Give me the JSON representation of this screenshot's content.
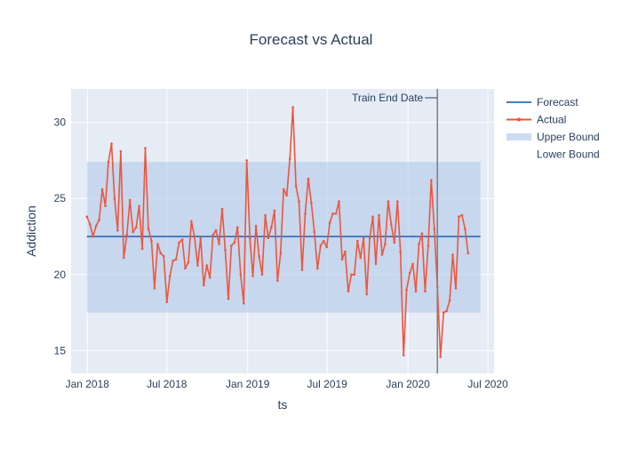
{
  "chart_data": {
    "type": "line",
    "title": "Forecast vs Actual",
    "xlabel": "ts",
    "ylabel": "Addiction",
    "x_ticks": [
      "Jan 2018",
      "Jul 2018",
      "Jan 2019",
      "Jul 2019",
      "Jan 2020",
      "Jul 2020"
    ],
    "y_ticks": [
      15,
      20,
      25,
      30
    ],
    "xlim": [
      "2017-11-25",
      "2020-07-15"
    ],
    "ylim": [
      13.5,
      32.2
    ],
    "grid": true,
    "legend_position": "top-right",
    "legend": [
      {
        "label": "Forecast",
        "color": "#4a7ebf",
        "kind": "line"
      },
      {
        "label": "Actual",
        "color": "#ef553b",
        "kind": "line-marker"
      },
      {
        "label": "Upper Bound",
        "color": "#c9dcf2",
        "kind": "band"
      },
      {
        "label": "Lower Bound",
        "color": "#ffffff",
        "kind": "none"
      }
    ],
    "annotation": {
      "label": "Train End Date",
      "x": "2020-03-08"
    },
    "forecast": {
      "x_start": "2017-12-31",
      "x_end": "2020-06-14",
      "value": 22.5
    },
    "bounds": {
      "upper": 27.4,
      "lower": 17.5
    },
    "series": [
      {
        "name": "Actual",
        "color": "#ef553b",
        "start": "2017-12-31",
        "step_days": 7,
        "values": [
          23.8,
          23.3,
          22.5,
          23.2,
          23.6,
          25.6,
          24.5,
          27.4,
          28.6,
          25.0,
          22.9,
          28.1,
          21.1,
          22.6,
          24.9,
          22.8,
          23.1,
          24.5,
          21.7,
          28.3,
          23.0,
          22.2,
          19.1,
          22.0,
          21.4,
          21.2,
          18.2,
          19.9,
          20.9,
          21.0,
          22.1,
          22.3,
          20.4,
          20.8,
          23.5,
          22.5,
          20.6,
          22.4,
          19.3,
          20.6,
          19.8,
          22.6,
          22.9,
          22.0,
          24.3,
          21.6,
          18.4,
          21.9,
          22.1,
          23.1,
          20.0,
          18.1,
          27.5,
          22.4,
          19.9,
          23.2,
          21.2,
          20.0,
          23.9,
          22.4,
          23.1,
          24.2,
          19.6,
          21.4,
          25.6,
          25.2,
          27.6,
          31.0,
          25.8,
          24.8,
          20.3,
          24.0,
          26.3,
          24.7,
          22.8,
          20.4,
          21.9,
          22.2,
          21.8,
          23.4,
          24.0,
          24.0,
          24.8,
          21.0,
          21.5,
          18.9,
          20.0,
          20.0,
          22.2,
          21.1,
          22.4,
          18.7,
          22.4,
          23.8,
          20.7,
          23.9,
          21.3,
          22.0,
          24.8,
          23.3,
          22.1,
          24.8,
          21.5,
          14.7,
          19.0,
          20.1,
          20.7,
          18.9,
          22.0,
          22.7,
          18.9,
          21.9,
          26.2,
          23.0,
          19.2,
          14.6,
          17.5,
          17.6,
          18.3,
          21.3,
          19.1,
          23.8,
          23.9,
          23.0,
          21.4
        ]
      }
    ]
  }
}
